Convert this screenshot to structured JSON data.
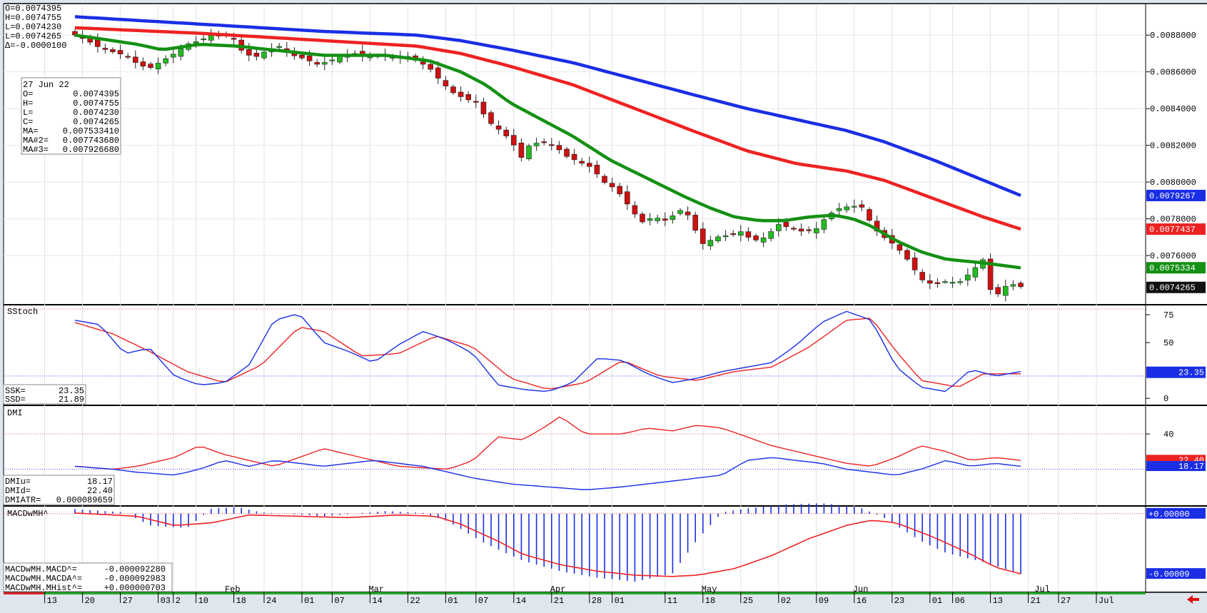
{
  "ohlc_readout": {
    "o": "O=0.0074395",
    "h": "H=0.0074755",
    "l": "L=0.0074230",
    "l2": "L=0.0074265",
    "d": "Δ=-0.0000100"
  },
  "info_box": {
    "date": "27 Jun 22",
    "rows": [
      {
        "k": "O=",
        "v": "0.0074395"
      },
      {
        "k": "H=",
        "v": "0.0074755"
      },
      {
        "k": "L=",
        "v": "0.0074230"
      },
      {
        "k": "C=",
        "v": "0.0074265"
      },
      {
        "k": "MA=",
        "v": "0.007533410"
      },
      {
        "k": "MA#2=",
        "v": "0.007743680"
      },
      {
        "k": "MA#3=",
        "v": "0.007926680"
      }
    ]
  },
  "price_axis": {
    "ticks": [
      "0.0088000",
      "0.0086000",
      "0.0084000",
      "0.0082000",
      "0.0080000",
      "0.0078000",
      "0.0076000"
    ],
    "tick_values": [
      0.0088,
      0.0086,
      0.0084,
      0.0082,
      0.008,
      0.0078,
      0.0076
    ],
    "range": [
      0.00734,
      0.00896
    ],
    "badges": [
      {
        "label": "0.0079267",
        "value": 0.0079267,
        "color": "#1a2ee6"
      },
      {
        "label": "0.0077437",
        "value": 0.0077437,
        "color": "#ee2222"
      },
      {
        "label": "0.0075334",
        "value": 0.0075334,
        "color": "#149014"
      },
      {
        "label": "0.0074265",
        "value": 0.0074265,
        "color": "#111111"
      }
    ]
  },
  "stoch": {
    "title": "SStoch",
    "ssk": {
      "label": "SSK=",
      "value": "23.35"
    },
    "ssd": {
      "label": "SSD=",
      "value": "21.89"
    },
    "ticks": [
      "75",
      "50",
      "0"
    ],
    "tick_values": [
      75,
      50,
      0
    ],
    "range": [
      -5,
      82
    ],
    "levels": [
      80,
      20
    ],
    "badge": {
      "label": "23.35",
      "value": 23.35
    }
  },
  "dmi": {
    "title": "DMI",
    "rows": [
      {
        "k": "DMIu=",
        "v": "18.17"
      },
      {
        "k": "DMId=",
        "v": "22.40"
      },
      {
        "k": "DMIATR=",
        "v": "0.000089659"
      }
    ],
    "ticks": [
      "40"
    ],
    "tick_values": [
      40
    ],
    "range": [
      -8,
      58
    ],
    "levels": [
      40,
      16
    ],
    "badges": [
      {
        "label": "22.40",
        "value": 22.4,
        "color": "#ee2222"
      },
      {
        "label": "18.17",
        "value": 18.17,
        "color": "#1a2ee6"
      }
    ]
  },
  "macd": {
    "title": "MACDwMH^",
    "rows": [
      {
        "k": "MACDwMH.MACD^=",
        "v": "-0.000092280"
      },
      {
        "k": "MACDwMH.MACDA^=",
        "v": "-0.000092983"
      },
      {
        "k": "MACDwMH.MHist^=",
        "v": "+0.000000703"
      }
    ],
    "range": [
      -0.000118,
      8.5e-06
    ],
    "badges": [
      {
        "label": "+0.00000",
        "value": 0.0
      },
      {
        "label": "-0.00009",
        "value": -9.2e-05
      }
    ]
  },
  "time_axis": {
    "months": [
      {
        "label": "Feb",
        "i": 20
      },
      {
        "label": "Mar",
        "i": 39
      },
      {
        "label": "Apr",
        "i": 63
      },
      {
        "label": "May",
        "i": 83
      },
      {
        "label": "Jun",
        "i": 103
      },
      {
        "label": "Jul",
        "i": 127
      }
    ],
    "days": [
      {
        "label": "13",
        "i": -4
      },
      {
        "label": "20",
        "i": 1
      },
      {
        "label": "27",
        "i": 6
      },
      {
        "label": "03",
        "i": 11
      },
      {
        "label": "2",
        "i": 13
      },
      {
        "label": "10",
        "i": 16
      },
      {
        "label": "18",
        "i": 21
      },
      {
        "label": "24",
        "i": 25
      },
      {
        "label": "01",
        "i": 30
      },
      {
        "label": "07",
        "i": 34
      },
      {
        "label": "14",
        "i": 39
      },
      {
        "label": "22",
        "i": 44
      },
      {
        "label": "01",
        "i": 49
      },
      {
        "label": "07",
        "i": 53
      },
      {
        "label": "14",
        "i": 58
      },
      {
        "label": "21",
        "i": 63
      },
      {
        "label": "28",
        "i": 68
      },
      {
        "label": "01",
        "i": 71
      },
      {
        "label": "11",
        "i": 78
      },
      {
        "label": "18",
        "i": 83
      },
      {
        "label": "25",
        "i": 88
      },
      {
        "label": "02",
        "i": 93
      },
      {
        "label": "09",
        "i": 98
      },
      {
        "label": "16",
        "i": 103
      },
      {
        "label": "23",
        "i": 108
      },
      {
        "label": "01",
        "i": 113
      },
      {
        "label": "06",
        "i": 116
      },
      {
        "label": "13",
        "i": 121
      },
      {
        "label": "21",
        "i": 126
      },
      {
        "label": "27",
        "i": 130
      },
      {
        "label": "Jul",
        "i": 135
      }
    ]
  },
  "colors": {
    "ma_fast": "#149014",
    "ma_mid": "#ee2222",
    "ma_slow": "#1a2ee6",
    "up": "#22bb22",
    "down": "#cc1111",
    "stoch_k": "#1a2ee6",
    "stoch_d": "#ee2222"
  },
  "chart_data": {
    "type": "candlestick",
    "note_bars": "daily bars, index 0 = first visible bar",
    "ohlc": [],
    "ma_fast": [],
    "ma_mid": [],
    "ma_slow": []
  }
}
